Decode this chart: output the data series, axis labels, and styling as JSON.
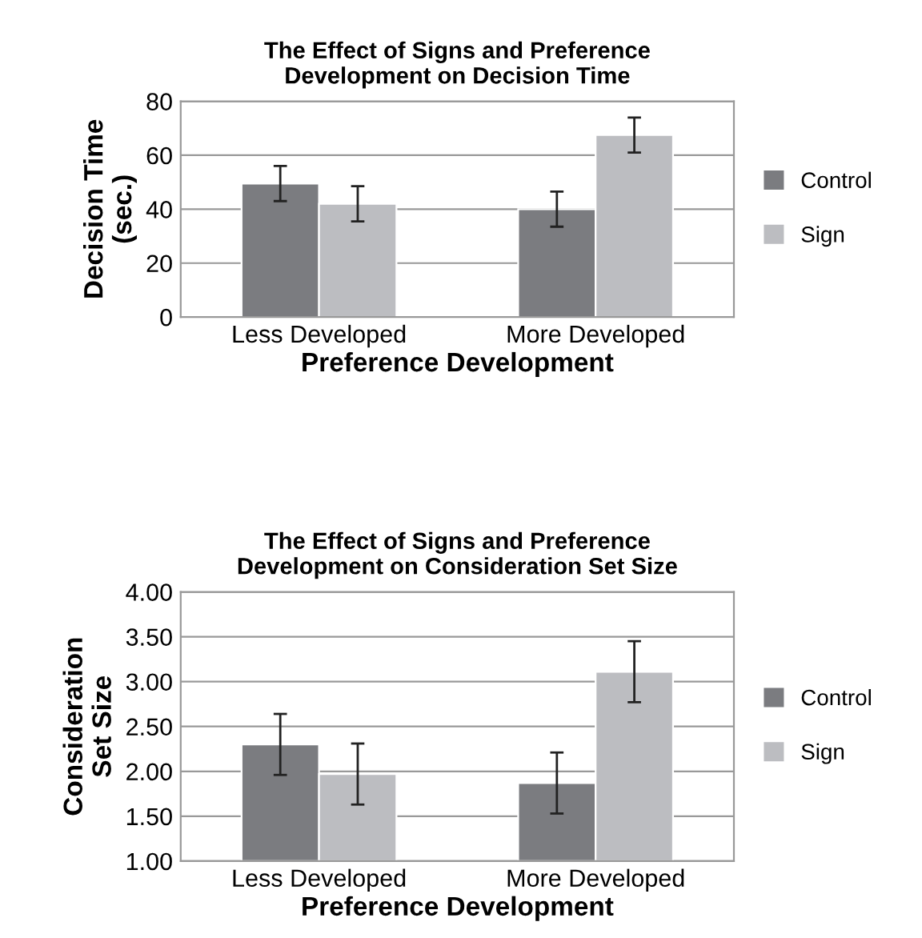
{
  "chart_data": [
    {
      "type": "bar",
      "title": "The Effect of Signs and Preference\nDevelopment on Decision Time",
      "xlabel": "Preference Development",
      "ylabel": "Decision Time\n(sec.)",
      "categories": [
        "Less Developed",
        "More Developed"
      ],
      "series": [
        {
          "name": "Control",
          "color": "#7b7c80",
          "values": [
            49.5,
            40
          ],
          "errors": [
            6.5,
            6.5
          ]
        },
        {
          "name": "Sign",
          "color": "#bcbdc1",
          "values": [
            42,
            67.5
          ],
          "errors": [
            6.5,
            6.5
          ]
        }
      ],
      "ylim": [
        0,
        80
      ],
      "yticks": [
        0,
        20,
        40,
        60,
        80
      ],
      "grid": "y",
      "legend": "right"
    },
    {
      "type": "bar",
      "title": "The Effect of Signs and Preference\nDevelopment on Consideration Set Size",
      "xlabel": "Preference Development",
      "ylabel": "Consideration\nSet Size",
      "categories": [
        "Less Developed",
        "More Developed"
      ],
      "series": [
        {
          "name": "Control",
          "color": "#7b7c80",
          "values": [
            2.3,
            1.87
          ],
          "errors": [
            0.34,
            0.34
          ]
        },
        {
          "name": "Sign",
          "color": "#bcbdc1",
          "values": [
            1.97,
            3.11
          ],
          "errors": [
            0.34,
            0.34
          ]
        }
      ],
      "ylim": [
        1.0,
        4.0
      ],
      "yticks": [
        {
          "value": 1.0,
          "label": "1.00"
        },
        {
          "value": 1.5,
          "label": "1.50"
        },
        {
          "value": 2.0,
          "label": "2.00"
        },
        {
          "value": 2.5,
          "label": "2.50"
        },
        {
          "value": 3.0,
          "label": "3.00"
        },
        {
          "value": 3.5,
          "label": "3.50"
        },
        {
          "value": 4.0,
          "label": "4.00"
        }
      ],
      "grid": "y",
      "legend": "right"
    }
  ]
}
